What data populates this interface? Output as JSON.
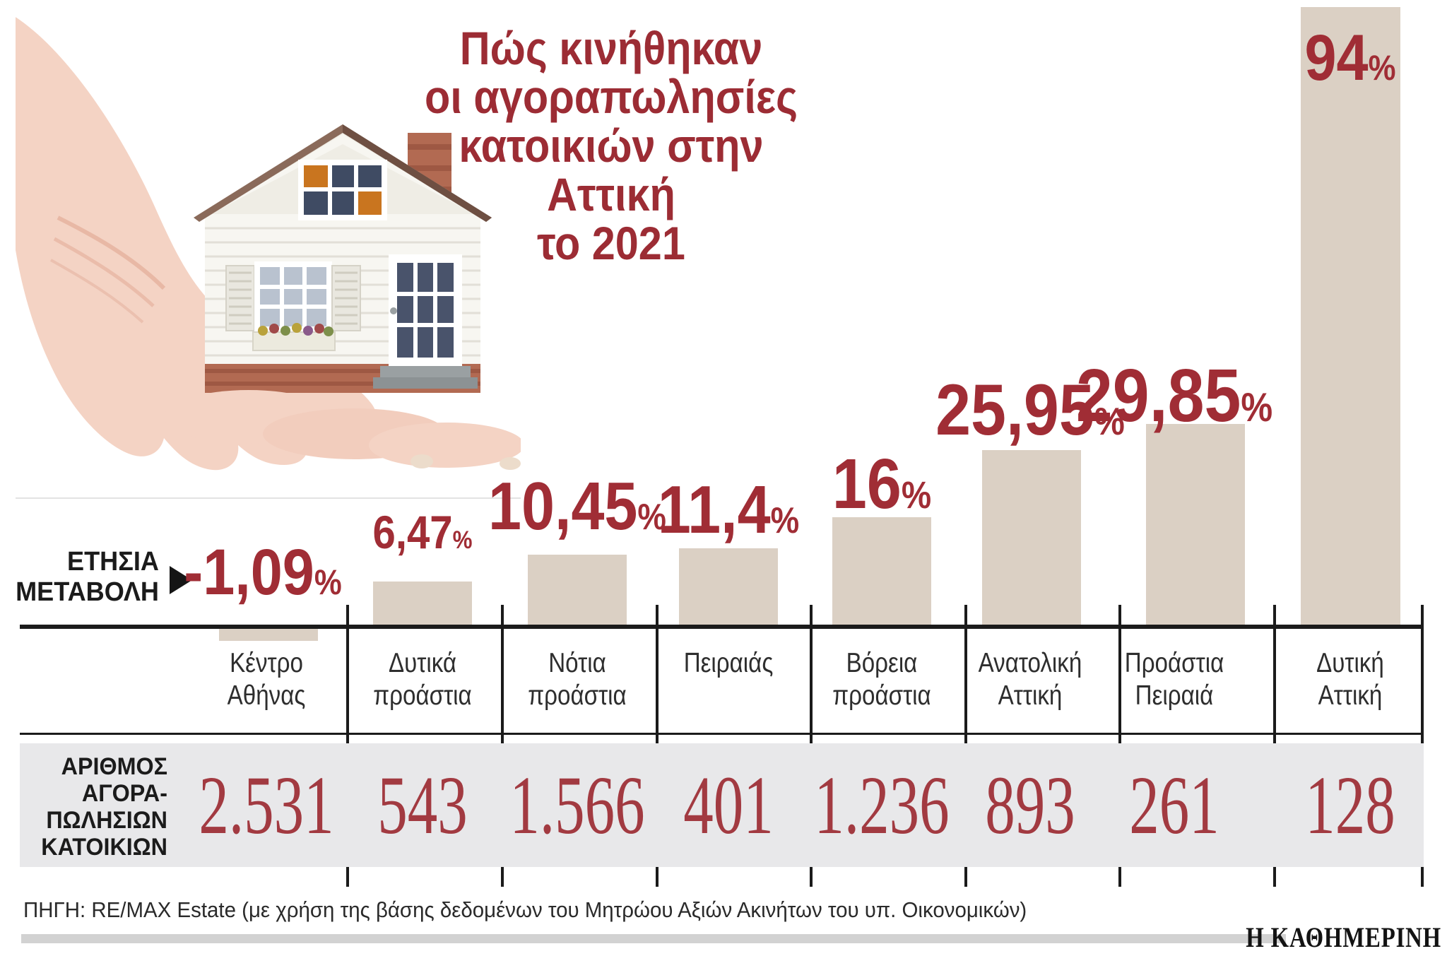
{
  "title": {
    "lines": [
      "Πώς κινήθηκαν",
      "οι αγοραπωλησίες",
      "κατοικιών στην Αττική",
      "το 2021"
    ]
  },
  "annual_change_label": {
    "line1": "ΕΤΗΣΙΑ",
    "line2": "ΜΕΤΑΒΟΛΗ"
  },
  "count_row_label": {
    "lines": [
      "ΑΡΙΘΜΟΣ",
      "ΑΓΟΡΑ-",
      "ΠΩΛΗΣΙΩΝ",
      "ΚΑΤΟΙΚΙΩΝ"
    ]
  },
  "source": "ΠΗΓΗ: RE/MAX Estate (με χρήση της βάσης δεδομένων του Μητρώου Αξιών Ακινήτων του υπ. Οικονομικών)",
  "brand": "Η ΚΑΘΗΜΕΡΙΝΗ",
  "icons": {
    "illustration": "hand-holding-house"
  },
  "chart_data": {
    "type": "bar",
    "title": "Πώς κινήθηκαν οι αγοραπωλησίες κατοικιών στην Αττική το 2021",
    "categories": [
      "Κέντρο Αθήνας",
      "Δυτικά προάστια",
      "Νότια προάστια",
      "Πειραιάς",
      "Βόρεια προάστια",
      "Ανατολική Αττική",
      "Προάστια Πειραιά",
      "Δυτική Αττική"
    ],
    "series": [
      {
        "name": "Ετήσια μεταβολή (%)",
        "values": [
          -1.09,
          6.47,
          10.45,
          11.4,
          16,
          25.95,
          29.85,
          94
        ]
      },
      {
        "name": "Αριθμός αγοραπωλησιών κατοικιών",
        "values": [
          2531,
          543,
          1566,
          401,
          1236,
          893,
          261,
          128
        ]
      }
    ],
    "value_labels": [
      "-1,09",
      "6,47",
      "10,45",
      "11,4",
      "16",
      "25,95",
      "29,85",
      "94"
    ],
    "count_labels": [
      "2.531",
      "543",
      "1.566",
      "401",
      "1.236",
      "893",
      "261",
      "128"
    ],
    "percent_suffix": "%",
    "bar_color": "#dbd0c4",
    "accent_color": "#9c2c34",
    "count_color": "#a23a41",
    "axis_color": "#1b1b1b",
    "legend_position": "none",
    "grid": false
  }
}
